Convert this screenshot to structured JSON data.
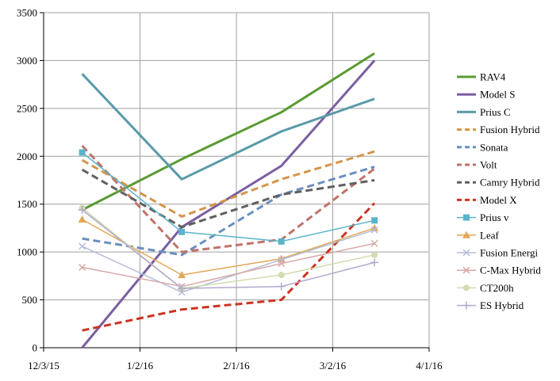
{
  "chart_data": {
    "type": "line",
    "title": "",
    "xlabel": "",
    "ylabel": "",
    "x_tick_labels": [
      "12/3/15",
      "1/2/16",
      "2/1/16",
      "3/2/16",
      "4/1/16"
    ],
    "y_tick_labels": [
      "0",
      "500",
      "1000",
      "1500",
      "2000",
      "2500",
      "3000",
      "3500"
    ],
    "xlim": [
      "2015-12-03",
      "2016-04-01"
    ],
    "ylim": [
      0,
      3500
    ],
    "grid": true,
    "legend_position": "right",
    "x": [
      "2015-12-15",
      "2016-01-15",
      "2016-02-15",
      "2016-03-15"
    ],
    "series": [
      {
        "name": "RAV4",
        "values": [
          1440,
          1970,
          2460,
          3075
        ],
        "color": "#5a9a32",
        "dash": "solid",
        "marker": "none",
        "width": 3
      },
      {
        "name": "Model S",
        "values": [
          0,
          1260,
          1900,
          3000
        ],
        "color": "#7a5ea0",
        "dash": "solid",
        "marker": "none",
        "width": 3
      },
      {
        "name": "Prius C",
        "values": [
          2860,
          1760,
          2260,
          2600
        ],
        "color": "#5a9aa8",
        "dash": "solid",
        "marker": "none",
        "width": 3
      },
      {
        "name": "Fusion Hybrid",
        "values": [
          1960,
          1370,
          1760,
          2050
        ],
        "color": "#d4954a",
        "dash": "dashed",
        "marker": "none",
        "width": 3
      },
      {
        "name": "Sonata",
        "values": [
          1140,
          970,
          1600,
          1890
        ],
        "color": "#6a8fbf",
        "dash": "dashed",
        "marker": "none",
        "width": 3
      },
      {
        "name": "Volt",
        "values": [
          2110,
          1000,
          1130,
          1870
        ],
        "color": "#c0736a",
        "dash": "dashed",
        "marker": "none",
        "width": 3
      },
      {
        "name": "Camry Hybrid",
        "values": [
          1860,
          1260,
          1600,
          1750
        ],
        "color": "#606060",
        "dash": "dashed",
        "marker": "none",
        "width": 3
      },
      {
        "name": "Model X",
        "values": [
          180,
          400,
          500,
          1510
        ],
        "color": "#cc3322",
        "dash": "dashed",
        "marker": "none",
        "width": 3
      },
      {
        "name": "Prius v",
        "values": [
          2040,
          1210,
          1110,
          1330
        ],
        "color": "#5ab4cc",
        "dash": "solid",
        "marker": "square",
        "width": 1.5
      },
      {
        "name": "Leaf",
        "values": [
          1340,
          760,
          930,
          1250
        ],
        "color": "#e2a858",
        "dash": "solid",
        "marker": "triangle",
        "width": 1.5
      },
      {
        "name": "Fusion Energi",
        "values": [
          1060,
          580,
          920,
          1230
        ],
        "color": "#b4bcd8",
        "dash": "solid",
        "marker": "x",
        "width": 1.5
      },
      {
        "name": "C-Max Hybrid",
        "values": [
          840,
          640,
          880,
          1090
        ],
        "color": "#d8a8a8",
        "dash": "solid",
        "marker": "x",
        "width": 1.5
      },
      {
        "name": "CT200h",
        "values": [
          1460,
          620,
          760,
          970
        ],
        "color": "#cfdcb0",
        "dash": "solid",
        "marker": "circle",
        "width": 1.5
      },
      {
        "name": "ES Hybrid",
        "values": [
          1440,
          620,
          640,
          890
        ],
        "color": "#b3a8cc",
        "dash": "solid",
        "marker": "plus",
        "width": 1.5
      }
    ]
  }
}
